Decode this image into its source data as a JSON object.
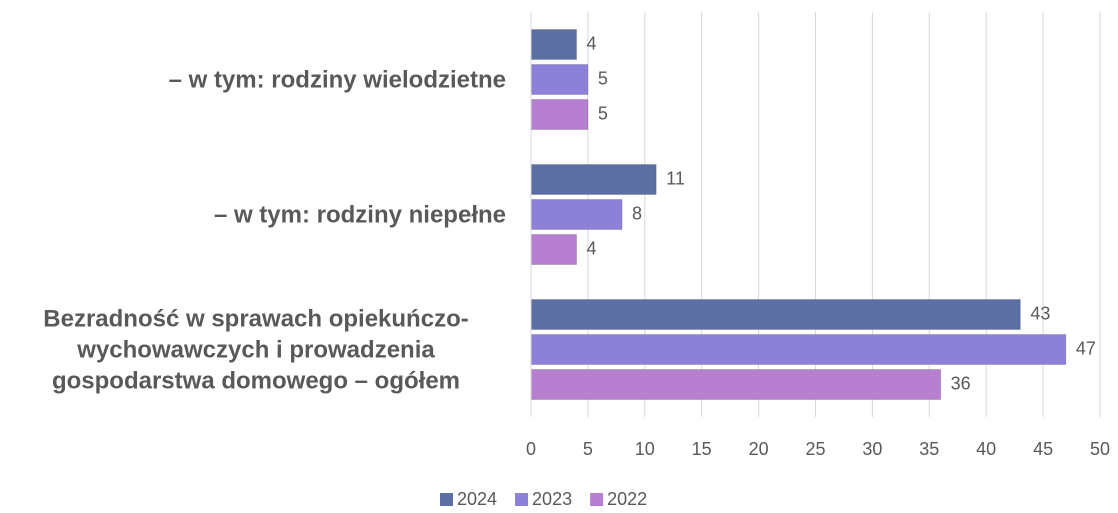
{
  "chart_data": {
    "type": "bar",
    "orientation": "horizontal",
    "categories": [
      "– w tym: rodziny wielodzietne",
      "– w tym: rodziny niepełne",
      "Bezradność w sprawach opiekuńczo-wychowawczych i prowadzenia gospodarstwa domowego – ogółem"
    ],
    "series": [
      {
        "name": "2024",
        "color": "#5b6fa3",
        "values": [
          4,
          11,
          43
        ]
      },
      {
        "name": "2023",
        "color": "#8c80d8",
        "values": [
          5,
          8,
          47
        ]
      },
      {
        "name": "2022",
        "color": "#b67fd0",
        "values": [
          5,
          4,
          36
        ]
      }
    ],
    "xlim": [
      0,
      50
    ],
    "xticks": [
      0,
      5,
      10,
      15,
      20,
      25,
      30,
      35,
      40,
      45,
      50
    ],
    "grid": true,
    "legend": "bottom"
  }
}
